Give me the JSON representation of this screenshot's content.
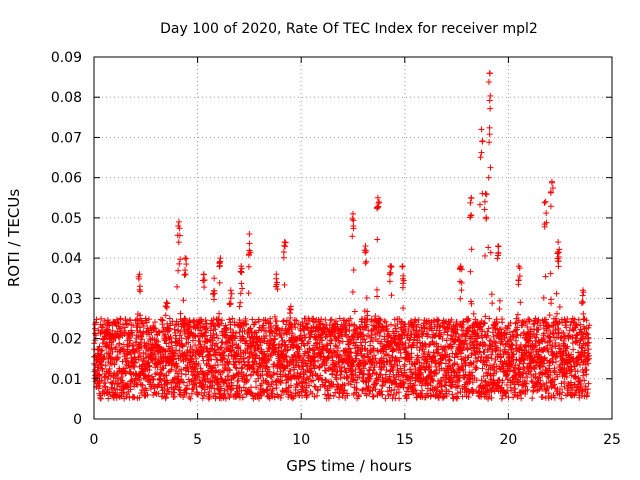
{
  "chart_data": {
    "type": "scatter",
    "title": "Day 100 of 2020, Rate Of TEC Index for receiver mpl2",
    "xlabel": "GPS time / hours",
    "ylabel": "ROTI / TECUs",
    "xlim": [
      0,
      25
    ],
    "ylim": [
      0,
      0.09
    ],
    "x_ticks": [
      0,
      5,
      10,
      15,
      20,
      25
    ],
    "x_tick_labels": [
      "0",
      "5",
      "10",
      "15",
      "20",
      "25"
    ],
    "y_ticks": [
      0,
      0.01,
      0.02,
      0.03,
      0.04,
      0.05,
      0.06,
      0.07,
      0.08,
      0.09
    ],
    "y_tick_labels": [
      "0",
      "0.01",
      "0.02",
      "0.03",
      "0.04",
      "0.05",
      "0.06",
      "0.07",
      "0.08",
      "0.09"
    ],
    "grid": true,
    "marker": "+",
    "color": "#ff0000",
    "series": [
      {
        "name": "mpl2",
        "x_range": [
          0,
          23.9
        ],
        "baseline_range": [
          0.005,
          0.025
        ],
        "peaks": [
          {
            "x": 0.7,
            "y": 0.024
          },
          {
            "x": 2.2,
            "y": 0.036
          },
          {
            "x": 3.5,
            "y": 0.029
          },
          {
            "x": 4.1,
            "y": 0.049
          },
          {
            "x": 4.4,
            "y": 0.04
          },
          {
            "x": 5.3,
            "y": 0.036
          },
          {
            "x": 5.8,
            "y": 0.035
          },
          {
            "x": 6.1,
            "y": 0.04
          },
          {
            "x": 6.6,
            "y": 0.032
          },
          {
            "x": 7.1,
            "y": 0.038
          },
          {
            "x": 7.5,
            "y": 0.046
          },
          {
            "x": 8.8,
            "y": 0.036
          },
          {
            "x": 9.2,
            "y": 0.044
          },
          {
            "x": 9.5,
            "y": 0.028
          },
          {
            "x": 12.5,
            "y": 0.051
          },
          {
            "x": 13.1,
            "y": 0.043
          },
          {
            "x": 13.7,
            "y": 0.055
          },
          {
            "x": 14.3,
            "y": 0.038
          },
          {
            "x": 14.9,
            "y": 0.038
          },
          {
            "x": 17.7,
            "y": 0.038
          },
          {
            "x": 18.2,
            "y": 0.055
          },
          {
            "x": 18.7,
            "y": 0.072
          },
          {
            "x": 18.9,
            "y": 0.056
          },
          {
            "x": 19.1,
            "y": 0.086
          },
          {
            "x": 19.5,
            "y": 0.043
          },
          {
            "x": 20.5,
            "y": 0.038
          },
          {
            "x": 21.8,
            "y": 0.054
          },
          {
            "x": 22.1,
            "y": 0.059
          },
          {
            "x": 22.4,
            "y": 0.044
          },
          {
            "x": 23.6,
            "y": 0.032
          }
        ]
      }
    ]
  }
}
